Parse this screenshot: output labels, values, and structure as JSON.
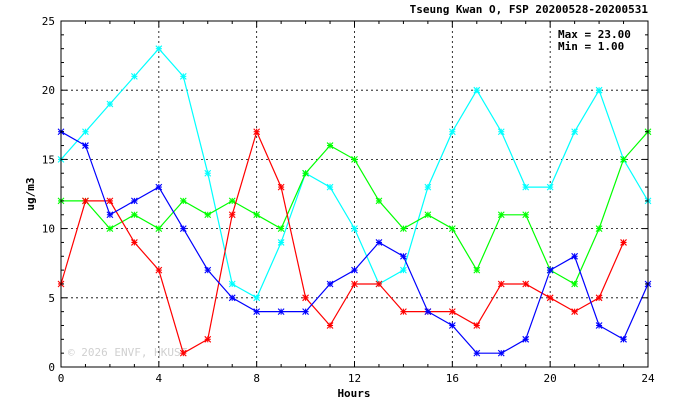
{
  "chart_data": {
    "type": "line",
    "title": "Tseung Kwan O, FSP 20200528-20200531",
    "xlabel": "Hours",
    "ylabel": "ug/m3",
    "xlim": [
      0,
      24
    ],
    "ylim": [
      0,
      25
    ],
    "xticks": [
      0,
      4,
      8,
      12,
      16,
      20,
      24
    ],
    "yticks": [
      0,
      5,
      10,
      15,
      20,
      25
    ],
    "grid": true,
    "stats": {
      "max": "Max = 23.00",
      "min": "Min =  1.00"
    },
    "watermark": "© 2026 ENVF, HKUST",
    "series": [
      {
        "color": "#00ffff",
        "x": [
          0,
          1,
          2,
          3,
          4,
          5,
          6,
          7,
          8,
          9,
          10,
          11,
          12,
          13,
          14,
          15,
          16,
          17,
          18,
          19,
          20,
          21,
          22,
          23,
          24
        ],
        "values": [
          15,
          17,
          19,
          21,
          23,
          21,
          14,
          6,
          5,
          9,
          14,
          13,
          10,
          6,
          7,
          13,
          17,
          20,
          17,
          13,
          13,
          17,
          20,
          15,
          12
        ]
      },
      {
        "color": "#00ff00",
        "x": [
          0,
          1,
          2,
          3,
          4,
          5,
          6,
          7,
          8,
          9,
          10,
          11,
          12,
          13,
          14,
          15,
          16,
          17,
          18,
          19,
          20,
          21,
          22,
          23,
          24
        ],
        "values": [
          12,
          12,
          10,
          11,
          10,
          12,
          11,
          12,
          11,
          10,
          14,
          16,
          15,
          12,
          10,
          11,
          10,
          7,
          11,
          11,
          7,
          6,
          10,
          15,
          17
        ]
      },
      {
        "color": "#ff0000",
        "x": [
          0,
          1,
          2,
          3,
          4,
          5,
          6,
          7,
          8,
          9,
          10,
          11,
          12,
          13,
          14,
          15,
          16,
          17,
          18,
          19,
          20,
          21,
          22,
          23
        ],
        "values": [
          6,
          12,
          12,
          9,
          7,
          1,
          2,
          11,
          17,
          13,
          5,
          3,
          6,
          6,
          4,
          4,
          4,
          3,
          6,
          6,
          5,
          4,
          5,
          9
        ]
      },
      {
        "color": "#0000ff",
        "x": [
          0,
          1,
          2,
          3,
          4,
          5,
          6,
          7,
          8,
          9,
          10,
          11,
          12,
          13,
          14,
          15,
          16,
          17,
          18,
          19,
          20,
          21,
          22,
          23,
          24
        ],
        "values": [
          17,
          16,
          11,
          12,
          13,
          10,
          7,
          5,
          4,
          4,
          4,
          6,
          7,
          9,
          8,
          4,
          3,
          1,
          1,
          2,
          7,
          8,
          3,
          2,
          6
        ]
      }
    ]
  }
}
